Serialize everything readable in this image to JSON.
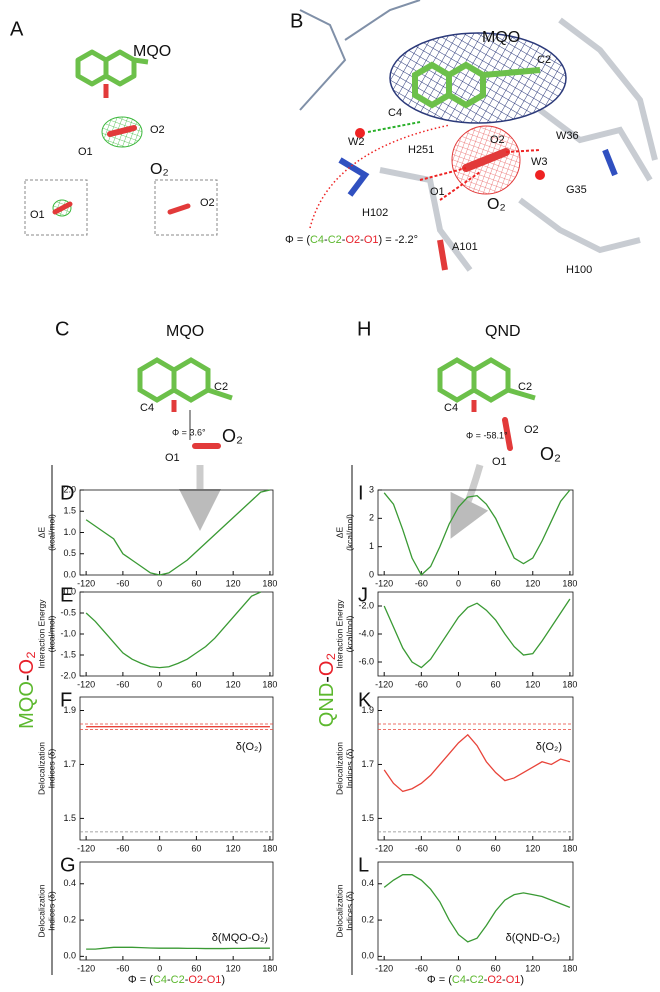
{
  "panels": {
    "a": {
      "letter": "A",
      "labels": [
        "MQO",
        "O2",
        "O1",
        "O₂",
        "O1",
        "O2"
      ]
    },
    "b": {
      "letter": "B",
      "labels": [
        "MQO",
        "C2",
        "C4",
        "W2",
        "W36",
        "H251",
        "O2",
        "W3",
        "O1",
        "O₂",
        "G35",
        "H102",
        "A101",
        "H100"
      ],
      "phi": [
        "Φ = (",
        "C4",
        "-",
        "C2",
        "-",
        "O2",
        "-",
        "O1",
        ") = -2.2°"
      ]
    },
    "c": {
      "letter": "C",
      "labels": [
        "MQO",
        "C2",
        "C4",
        "Φ = 3.6°",
        "O₂",
        "O1"
      ]
    },
    "h": {
      "letter": "H",
      "labels": [
        "QND",
        "C2",
        "C4",
        "Φ = -58.1°",
        "O2",
        "O1",
        "O₂"
      ]
    },
    "side_labels": [
      [
        "MQO",
        "-",
        "O₂"
      ],
      [
        "QND",
        "-",
        "O₂"
      ]
    ]
  },
  "chart_data": [
    {
      "type": "line",
      "label": "D",
      "ylabel": [
        "ΔE",
        "(kcal/mol)"
      ],
      "x": [
        -120,
        -105,
        -90,
        -75,
        -60,
        -45,
        -30,
        -15,
        0,
        15,
        30,
        45,
        60,
        75,
        90,
        105,
        120,
        135,
        150,
        165,
        180
      ],
      "series": [
        {
          "color": "#3a9a34",
          "values": [
            1.3,
            1.15,
            1.0,
            0.85,
            0.5,
            0.35,
            0.2,
            0.05,
            0.0,
            0.05,
            0.2,
            0.35,
            0.55,
            0.75,
            0.95,
            1.15,
            1.35,
            1.55,
            1.75,
            1.95,
            2.0
          ]
        }
      ],
      "xlim": [
        -130,
        185
      ],
      "xticks": [
        -120,
        -60,
        0,
        60,
        120,
        180
      ],
      "ylim": [
        0,
        2
      ],
      "yticks": [
        {
          "value": 0,
          "label": "0.0"
        },
        {
          "value": 0.5,
          "label": "0.5"
        },
        {
          "value": 1,
          "label": "1.0"
        },
        {
          "value": 1.5,
          "label": "1.5"
        },
        {
          "value": 2,
          "label": "2.0"
        }
      ]
    },
    {
      "type": "line",
      "label": "E",
      "ylabel": [
        "Interaction Energy",
        "(kcal/mol)"
      ],
      "x": [
        -120,
        -105,
        -90,
        -75,
        -60,
        -45,
        -30,
        -15,
        0,
        15,
        30,
        45,
        60,
        75,
        90,
        105,
        120,
        135,
        150,
        165,
        180
      ],
      "series": [
        {
          "color": "#3a9a34",
          "values": [
            -0.5,
            -0.7,
            -0.95,
            -1.2,
            -1.45,
            -1.6,
            -1.7,
            -1.78,
            -1.8,
            -1.78,
            -1.7,
            -1.6,
            -1.45,
            -1.3,
            -1.1,
            -0.85,
            -0.6,
            -0.35,
            -0.1,
            0.0,
            null
          ]
        }
      ],
      "xlim": [
        -130,
        185
      ],
      "xticks": [
        -120,
        -60,
        0,
        60,
        120,
        180
      ],
      "ylim": [
        -2,
        0
      ],
      "yticks": [
        {
          "value": 0,
          "label": "0.0"
        },
        {
          "value": -0.5,
          "label": "-0.5"
        },
        {
          "value": -1,
          "label": "-1.0"
        },
        {
          "value": -1.5,
          "label": "-1.5"
        },
        {
          "value": -2,
          "label": "-2.0"
        }
      ]
    },
    {
      "type": "line",
      "label": "F",
      "ylabel": [
        "Delocalization",
        "Indices (δ)"
      ],
      "annotation": "δ(O₂)",
      "x": [
        -120,
        -105,
        -90,
        -75,
        -60,
        -45,
        -30,
        -15,
        0,
        15,
        30,
        45,
        60,
        75,
        90,
        105,
        120,
        135,
        150,
        165,
        180
      ],
      "series": [
        {
          "color": "#e8443a",
          "values": [
            1.84,
            1.84,
            1.84,
            1.84,
            1.84,
            1.84,
            1.84,
            1.84,
            1.84,
            1.84,
            1.84,
            1.84,
            1.84,
            1.84,
            1.84,
            1.84,
            1.84,
            1.84,
            1.84,
            1.84,
            1.84
          ]
        }
      ],
      "reference_lines": [
        {
          "value": 1.85,
          "color": "#e8443a"
        },
        {
          "value": 1.83,
          "color": "#e8443a"
        },
        {
          "value": 1.45,
          "color": "#888888"
        }
      ],
      "xlim": [
        -130,
        185
      ],
      "xticks": [
        -120,
        -60,
        0,
        60,
        120,
        180
      ],
      "ylim": [
        1.42,
        1.95
      ],
      "yticks": [
        1.5,
        1.7,
        1.9
      ]
    },
    {
      "type": "line",
      "label": "G",
      "ylabel": [
        "Delocalization",
        "Indices (δ)"
      ],
      "annotation": "δ(MQO-O₂)",
      "xlabel": [
        "Φ = (",
        "C4",
        "-",
        "C2",
        "-",
        "O2",
        "-",
        "O1",
        ")"
      ],
      "x": [
        -120,
        -105,
        -90,
        -75,
        -60,
        -45,
        -30,
        -15,
        0,
        15,
        30,
        45,
        60,
        75,
        90,
        105,
        120,
        135,
        150,
        165,
        180
      ],
      "series": [
        {
          "color": "#3a9a34",
          "values": [
            0.04,
            0.04,
            0.045,
            0.05,
            0.05,
            0.05,
            0.048,
            0.046,
            0.045,
            0.045,
            0.045,
            0.044,
            0.044,
            0.043,
            0.043,
            0.043,
            0.044,
            0.044,
            0.045,
            0.045,
            0.045
          ]
        }
      ],
      "xlim": [
        -130,
        185
      ],
      "xticks": [
        -120,
        -60,
        0,
        60,
        120,
        180
      ],
      "ylim": [
        -0.02,
        0.52
      ],
      "yticks": [
        {
          "value": 0,
          "label": "0.0"
        },
        0.2,
        0.4
      ]
    },
    {
      "type": "line",
      "label": "I",
      "ylabel": [
        "ΔE",
        "(kcal/mol)"
      ],
      "x": [
        -120,
        -105,
        -90,
        -75,
        -60,
        -45,
        -30,
        -15,
        0,
        15,
        30,
        45,
        60,
        75,
        90,
        105,
        120,
        135,
        150,
        165,
        180
      ],
      "series": [
        {
          "color": "#3a9a34",
          "values": [
            2.9,
            2.5,
            1.6,
            0.6,
            0.0,
            0.3,
            1.0,
            1.8,
            2.4,
            2.75,
            2.8,
            2.5,
            2.0,
            1.3,
            0.6,
            0.4,
            0.6,
            1.2,
            1.9,
            2.6,
            3.0
          ]
        }
      ],
      "xlim": [
        -130,
        185
      ],
      "xticks": [
        -120,
        -60,
        0,
        60,
        120,
        180
      ],
      "ylim": [
        0,
        3
      ],
      "yticks": [
        0,
        1,
        2,
        3
      ]
    },
    {
      "type": "line",
      "label": "J",
      "ylabel": [
        "Interaction Energy",
        "(kcal/mol)"
      ],
      "x": [
        -120,
        -105,
        -90,
        -75,
        -60,
        -45,
        -30,
        -15,
        0,
        15,
        30,
        45,
        60,
        75,
        90,
        105,
        120,
        135,
        150,
        165,
        180
      ],
      "series": [
        {
          "color": "#3a9a34",
          "values": [
            -2.0,
            -3.5,
            -5.0,
            -6.0,
            -6.4,
            -5.8,
            -4.8,
            -3.8,
            -2.8,
            -2.1,
            -1.8,
            -2.3,
            -3.0,
            -4.0,
            -4.9,
            -5.5,
            -5.4,
            -4.5,
            -3.5,
            -2.5,
            -1.5
          ]
        }
      ],
      "xlim": [
        -130,
        185
      ],
      "xticks": [
        -120,
        -60,
        0,
        60,
        120,
        180
      ],
      "ylim": [
        -7,
        -1
      ],
      "yticks": [
        {
          "value": -2,
          "label": "-2.0"
        },
        {
          "value": -4,
          "label": "-4.0"
        },
        {
          "value": -6,
          "label": "-6.0"
        }
      ]
    },
    {
      "type": "line",
      "label": "K",
      "ylabel": [
        "Delocalization",
        "Indices (δ)"
      ],
      "annotation": "δ(O₂)",
      "x": [
        -120,
        -105,
        -90,
        -75,
        -60,
        -45,
        -30,
        -15,
        0,
        15,
        30,
        45,
        60,
        75,
        90,
        105,
        120,
        135,
        150,
        165,
        180
      ],
      "series": [
        {
          "color": "#e8443a",
          "values": [
            1.68,
            1.63,
            1.6,
            1.61,
            1.63,
            1.66,
            1.7,
            1.74,
            1.78,
            1.81,
            1.77,
            1.71,
            1.67,
            1.64,
            1.65,
            1.67,
            1.69,
            1.71,
            1.7,
            1.72,
            1.71
          ]
        }
      ],
      "reference_lines": [
        {
          "value": 1.85,
          "color": "#e8443a"
        },
        {
          "value": 1.83,
          "color": "#e8443a"
        },
        {
          "value": 1.45,
          "color": "#888888"
        }
      ],
      "xlim": [
        -130,
        185
      ],
      "xticks": [
        -120,
        -60,
        0,
        60,
        120,
        180
      ],
      "ylim": [
        1.42,
        1.95
      ],
      "yticks": [
        1.5,
        1.7,
        1.9
      ]
    },
    {
      "type": "line",
      "label": "L",
      "ylabel": [
        "Delocalization",
        "Indices (δ)"
      ],
      "annotation": "δ(QND-O₂)",
      "xlabel": [
        "Φ = (",
        "C4",
        "-",
        "C2",
        "-",
        "O2",
        "-",
        "O1",
        ")"
      ],
      "x": [
        -120,
        -105,
        -90,
        -75,
        -60,
        -45,
        -30,
        -15,
        0,
        15,
        30,
        45,
        60,
        75,
        90,
        105,
        120,
        135,
        150,
        165,
        180
      ],
      "series": [
        {
          "color": "#3a9a34",
          "values": [
            0.38,
            0.42,
            0.45,
            0.45,
            0.42,
            0.37,
            0.3,
            0.2,
            0.12,
            0.08,
            0.1,
            0.17,
            0.25,
            0.31,
            0.34,
            0.35,
            0.34,
            0.33,
            0.31,
            0.29,
            0.27
          ]
        }
      ],
      "xlim": [
        -130,
        185
      ],
      "xticks": [
        -120,
        -60,
        0,
        60,
        120,
        180
      ],
      "ylim": [
        -0.02,
        0.52
      ],
      "yticks": [
        {
          "value": 0,
          "label": "0.0"
        },
        0.2,
        0.4
      ]
    }
  ]
}
